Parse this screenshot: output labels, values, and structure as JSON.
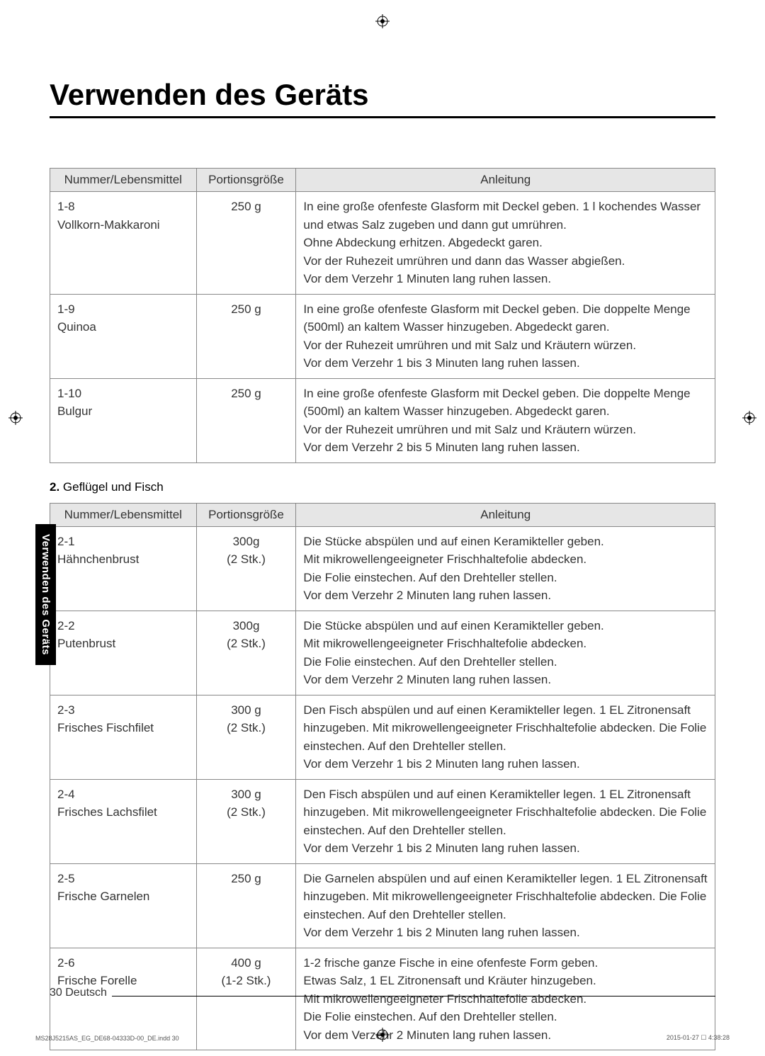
{
  "page_title": "Verwenden des Geräts",
  "side_tab": "Verwenden des Geräts",
  "table1": {
    "headers": {
      "num": "Nummer/Lebensmittel",
      "portion": "Portionsgröße",
      "instruction": "Anleitung"
    },
    "rows": [
      {
        "num": "1-8\nVollkorn-Makkaroni",
        "portion": "250 g",
        "instruction": "In eine große ofenfeste Glasform mit Deckel geben. 1 l kochendes Wasser und etwas Salz zugeben und dann gut umrühren.\nOhne Abdeckung erhitzen. Abgedeckt garen.\nVor der Ruhezeit umrühren und dann das Wasser abgießen.\nVor dem Verzehr 1 Minuten lang ruhen lassen."
      },
      {
        "num": "1-9\nQuinoa",
        "portion": "250 g",
        "instruction": "In eine große ofenfeste Glasform mit Deckel geben. Die doppelte Menge (500ml) an kaltem Wasser hinzugeben. Abgedeckt garen.\nVor der Ruhezeit umrühren und mit Salz und Kräutern würzen.\nVor dem Verzehr 1 bis 3 Minuten lang ruhen lassen."
      },
      {
        "num": "1-10\nBulgur",
        "portion": "250 g",
        "instruction": "In eine große ofenfeste Glasform mit Deckel geben. Die doppelte Menge (500ml) an kaltem Wasser hinzugeben. Abgedeckt garen.\nVor der Ruhezeit umrühren und mit Salz und Kräutern würzen.\nVor dem Verzehr 2 bis 5 Minuten lang ruhen lassen."
      }
    ]
  },
  "subsection": {
    "num": "2.",
    "text": "Geflügel und Fisch"
  },
  "table2": {
    "headers": {
      "num": "Nummer/Lebensmittel",
      "portion": "Portionsgröße",
      "instruction": "Anleitung"
    },
    "rows": [
      {
        "num": "2-1\nHähnchenbrust",
        "portion": "300g\n(2 Stk.)",
        "instruction": "Die Stücke abspülen und auf einen Keramikteller geben.\nMit mikrowellengeeigneter Frischhaltefolie abdecken.\nDie Folie einstechen. Auf den Drehteller stellen.\nVor dem Verzehr 2 Minuten lang ruhen lassen."
      },
      {
        "num": "2-2\nPutenbrust",
        "portion": "300g\n(2 Stk.)",
        "instruction": "Die Stücke abspülen und auf einen Keramikteller geben.\nMit mikrowellengeeigneter Frischhaltefolie abdecken.\nDie Folie einstechen. Auf den Drehteller stellen.\nVor dem Verzehr 2 Minuten lang ruhen lassen."
      },
      {
        "num": "2-3\nFrisches Fischfilet",
        "portion": "300 g\n(2 Stk.)",
        "instruction": "Den Fisch abspülen und auf einen Keramikteller legen. 1 EL Zitronensaft hinzugeben. Mit mikrowellengeeigneter Frischhaltefolie abdecken. Die Folie einstechen. Auf den Drehteller stellen.\nVor dem Verzehr 1 bis 2 Minuten lang ruhen lassen."
      },
      {
        "num": "2-4\nFrisches Lachsfilet",
        "portion": "300 g\n(2 Stk.)",
        "instruction": "Den Fisch abspülen und auf einen Keramikteller legen. 1 EL Zitronensaft hinzugeben. Mit mikrowellengeeigneter Frischhaltefolie abdecken. Die Folie einstechen. Auf den Drehteller stellen.\nVor dem Verzehr 1 bis 2 Minuten lang ruhen lassen."
      },
      {
        "num": "2-5\nFrische Garnelen",
        "portion": "250 g",
        "instruction": "Die Garnelen abspülen und auf einen Keramikteller legen. 1 EL Zitronensaft hinzugeben. Mit mikrowellengeeigneter Frischhaltefolie abdecken. Die Folie einstechen. Auf den Drehteller stellen.\nVor dem Verzehr 1 bis 2 Minuten lang ruhen lassen."
      },
      {
        "num": "2-6\nFrische Forelle",
        "portion": "400 g\n(1-2 Stk.)",
        "instruction": "1-2 frische ganze Fische in eine ofenfeste Form geben.\nEtwas Salz, 1 EL Zitronensaft und Kräuter hinzugeben.\nMit mikrowellengeeigneter Frischhaltefolie abdecken.\nDie Folie einstechen. Auf den Drehteller stellen.\nVor dem Verzehr 2 Minuten lang ruhen lassen."
      }
    ]
  },
  "footer": "30 Deutsch",
  "print_left": "MS28J5215AS_EG_DE68-04333D-00_DE.indd   30",
  "print_right": "2015-01-27   ☐ 4:38:28"
}
